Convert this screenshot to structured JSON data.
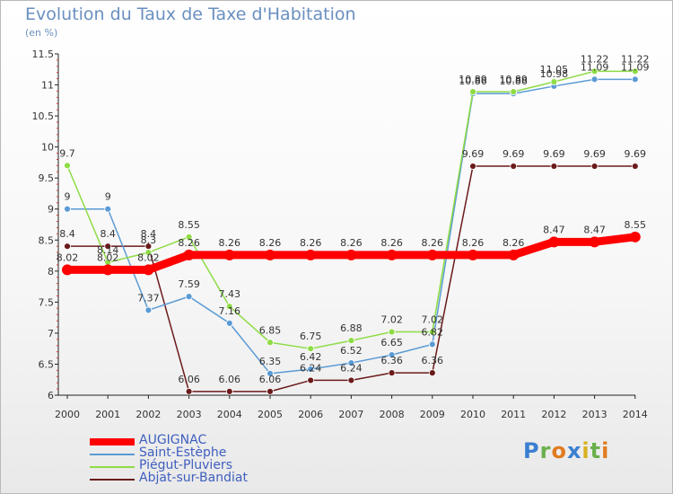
{
  "title": "Evolution du Taux de Taxe d'Habitation",
  "unit": "(en %)",
  "logo": {
    "text": "Proxiti",
    "letter_colors": [
      "#3a7fd0",
      "#6ab04c",
      "#e07b20",
      "#3a7fd0",
      "#d8b020",
      "#6ab04c",
      "#e07b20"
    ]
  },
  "chart_data": {
    "type": "line",
    "x": [
      2000,
      2001,
      2002,
      2003,
      2004,
      2005,
      2006,
      2007,
      2008,
      2009,
      2010,
      2011,
      2012,
      2013,
      2014
    ],
    "ylim": [
      6,
      11.5
    ],
    "yticks": [
      "6",
      "6.5",
      "7",
      "7.5",
      "8",
      "8.5",
      "9",
      "9.5",
      "10",
      "10.5",
      "11",
      "11.5"
    ],
    "grid": false,
    "legend_position": "bottom-left",
    "series": [
      {
        "name": "AUGIGNAC",
        "color": "#ff0000",
        "width": 9,
        "values": [
          8.02,
          8.02,
          8.02,
          8.26,
          8.26,
          8.26,
          8.26,
          8.26,
          8.26,
          8.26,
          8.26,
          8.26,
          8.47,
          8.47,
          8.55
        ],
        "labels": [
          "8.02",
          "8.02",
          "8.02",
          "8.26",
          "8.26",
          "8.26",
          "8.26",
          "8.26",
          "8.26",
          "8.26",
          "8.26",
          "8.26",
          "8.47",
          "8.47",
          "8.55"
        ]
      },
      {
        "name": "Saint-Estèphe",
        "color": "#5b9bd5",
        "width": 1.5,
        "values": [
          9.0,
          9.0,
          7.37,
          7.59,
          7.16,
          6.35,
          6.42,
          6.52,
          6.65,
          6.82,
          10.86,
          10.86,
          10.98,
          11.09,
          11.09
        ],
        "labels": [
          "9",
          "9",
          "7.37",
          "7.59",
          "7.16",
          "6.35",
          "6.42",
          "6.52",
          "6.65",
          "6.82",
          "10.86",
          "10.86",
          "10.98",
          "11.09",
          "11.09"
        ]
      },
      {
        "name": "Piégut-Pluviers",
        "color": "#8edc45",
        "width": 1.5,
        "values": [
          9.7,
          8.14,
          8.3,
          8.55,
          7.43,
          6.85,
          6.75,
          6.88,
          7.02,
          7.02,
          10.89,
          10.89,
          11.05,
          11.22,
          11.22
        ],
        "labels": [
          "9.7",
          "8.14",
          "8.3",
          "8.55",
          "7.43",
          "6.85",
          "6.75",
          "6.88",
          "7.02",
          "7.02",
          "10.89",
          "10.89",
          "11.05",
          "11.22",
          "11.22"
        ]
      },
      {
        "name": "Abjat-sur-Bandiat",
        "color": "#6b1a1a",
        "width": 1.5,
        "values": [
          8.4,
          8.4,
          8.4,
          6.06,
          6.06,
          6.06,
          6.24,
          6.24,
          6.36,
          6.36,
          9.69,
          9.69,
          9.69,
          9.69,
          9.69
        ],
        "labels": [
          "8.4",
          "8.4",
          "8.4",
          "6.06",
          "6.06",
          "6.06",
          "6.24",
          "6.24",
          "6.36",
          "6.36",
          "9.69",
          "9.69",
          "9.69",
          "9.69",
          "9.69"
        ]
      }
    ]
  }
}
